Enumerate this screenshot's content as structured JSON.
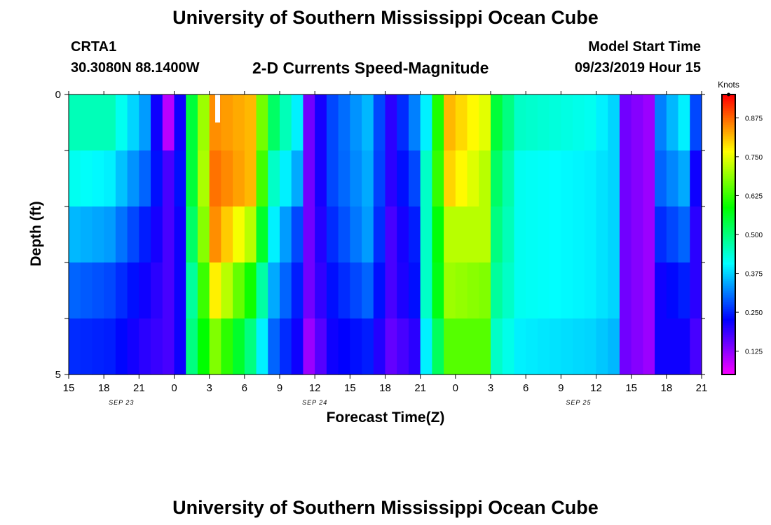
{
  "header": {
    "title": "University of Southern Mississippi Ocean Cube",
    "station": "CRTA1",
    "coords": "30.3080N 88.1400W",
    "subtitle": "2-D Currents Speed-Magnitude",
    "model_start_label": "Model Start Time",
    "model_start_value": "09/23/2019 Hour 15"
  },
  "footer": {
    "title": "University of Southern Mississippi Ocean Cube"
  },
  "chart_data": {
    "type": "heatmap",
    "title": "2-D Currents Speed-Magnitude",
    "xlabel": "Forecast Time(Z)",
    "ylabel": "Depth (ft)",
    "x_ticks": [
      "15",
      "18",
      "21",
      "0",
      "3",
      "6",
      "9",
      "12",
      "15",
      "18",
      "21",
      "0",
      "3",
      "6",
      "9",
      "12",
      "15",
      "18",
      "21"
    ],
    "date_labels": [
      {
        "text": "SEP 23",
        "hour_index": 4.5
      },
      {
        "text": "SEP 24",
        "hour_index": 21
      },
      {
        "text": "SEP 25",
        "hour_index": 43.5
      }
    ],
    "y_ticks": [
      "0",
      "5"
    ],
    "ylim": [
      0,
      5
    ],
    "depth_rows": 5,
    "hours": 54,
    "colorbar": {
      "label": "Knots",
      "range": [
        0.05,
        0.95
      ],
      "ticks": [
        "0.125",
        "0.250",
        "0.375",
        "0.500",
        "0.625",
        "0.750",
        "0.875"
      ],
      "tick_values": [
        0.125,
        0.25,
        0.375,
        0.5,
        0.625,
        0.75,
        0.875
      ]
    },
    "colors": {
      "palette": [
        "#ff00ff",
        "#7f00ff",
        "#0000ff",
        "#0080ff",
        "#00ffff",
        "#00ff80",
        "#00ff00",
        "#80ff00",
        "#ffff00",
        "#ff8000",
        "#ff0000"
      ],
      "marker": "#ffffff"
    },
    "speed_keypoints": [
      {
        "hour": 0,
        "values": [
          0.46,
          0.42,
          0.36,
          0.3,
          0.26
        ]
      },
      {
        "hour": 3,
        "values": [
          0.46,
          0.4,
          0.34,
          0.28,
          0.25
        ]
      },
      {
        "hour": 6,
        "values": [
          0.34,
          0.3,
          0.25,
          0.22,
          0.2
        ]
      },
      {
        "hour": 8,
        "values": [
          0.1,
          0.18,
          0.18,
          0.18,
          0.18
        ]
      },
      {
        "hour": 9,
        "values": [
          0.22,
          0.24,
          0.22,
          0.22,
          0.22
        ]
      },
      {
        "hour": 10,
        "values": [
          0.55,
          0.55,
          0.52,
          0.48,
          0.5
        ]
      },
      {
        "hour": 12,
        "values": [
          0.85,
          0.87,
          0.85,
          0.78,
          0.68
        ]
      },
      {
        "hour": 15,
        "values": [
          0.82,
          0.82,
          0.72,
          0.6,
          0.5
        ]
      },
      {
        "hour": 17,
        "values": [
          0.52,
          0.45,
          0.4,
          0.35,
          0.3
        ]
      },
      {
        "hour": 19,
        "values": [
          0.4,
          0.35,
          0.28,
          0.25,
          0.22
        ]
      },
      {
        "hour": 20,
        "values": [
          0.15,
          0.15,
          0.15,
          0.15,
          0.12
        ]
      },
      {
        "hour": 22,
        "values": [
          0.28,
          0.28,
          0.26,
          0.24,
          0.22
        ]
      },
      {
        "hour": 25,
        "values": [
          0.36,
          0.35,
          0.34,
          0.3,
          0.25
        ]
      },
      {
        "hour": 27,
        "values": [
          0.2,
          0.2,
          0.18,
          0.18,
          0.16
        ]
      },
      {
        "hour": 29,
        "values": [
          0.32,
          0.28,
          0.25,
          0.24,
          0.2
        ]
      },
      {
        "hour": 30,
        "values": [
          0.4,
          0.45,
          0.45,
          0.45,
          0.4
        ]
      },
      {
        "hour": 32,
        "values": [
          0.82,
          0.8,
          0.72,
          0.7,
          0.65
        ]
      },
      {
        "hour": 35,
        "values": [
          0.75,
          0.72,
          0.72,
          0.68,
          0.65
        ]
      },
      {
        "hour": 36,
        "values": [
          0.55,
          0.52,
          0.5,
          0.48,
          0.45
        ]
      },
      {
        "hour": 38,
        "values": [
          0.45,
          0.42,
          0.42,
          0.42,
          0.4
        ]
      },
      {
        "hour": 44,
        "values": [
          0.42,
          0.4,
          0.4,
          0.4,
          0.38
        ]
      },
      {
        "hour": 46,
        "values": [
          0.38,
          0.38,
          0.38,
          0.38,
          0.36
        ]
      },
      {
        "hour": 47,
        "values": [
          0.15,
          0.15,
          0.15,
          0.15,
          0.15
        ]
      },
      {
        "hour": 49,
        "values": [
          0.12,
          0.12,
          0.12,
          0.12,
          0.12
        ]
      },
      {
        "hour": 50,
        "values": [
          0.32,
          0.3,
          0.26,
          0.22,
          0.22
        ]
      },
      {
        "hour": 52,
        "values": [
          0.4,
          0.35,
          0.3,
          0.25,
          0.22
        ]
      },
      {
        "hour": 53,
        "values": [
          0.28,
          0.22,
          0.2,
          0.2,
          0.18
        ]
      }
    ]
  }
}
